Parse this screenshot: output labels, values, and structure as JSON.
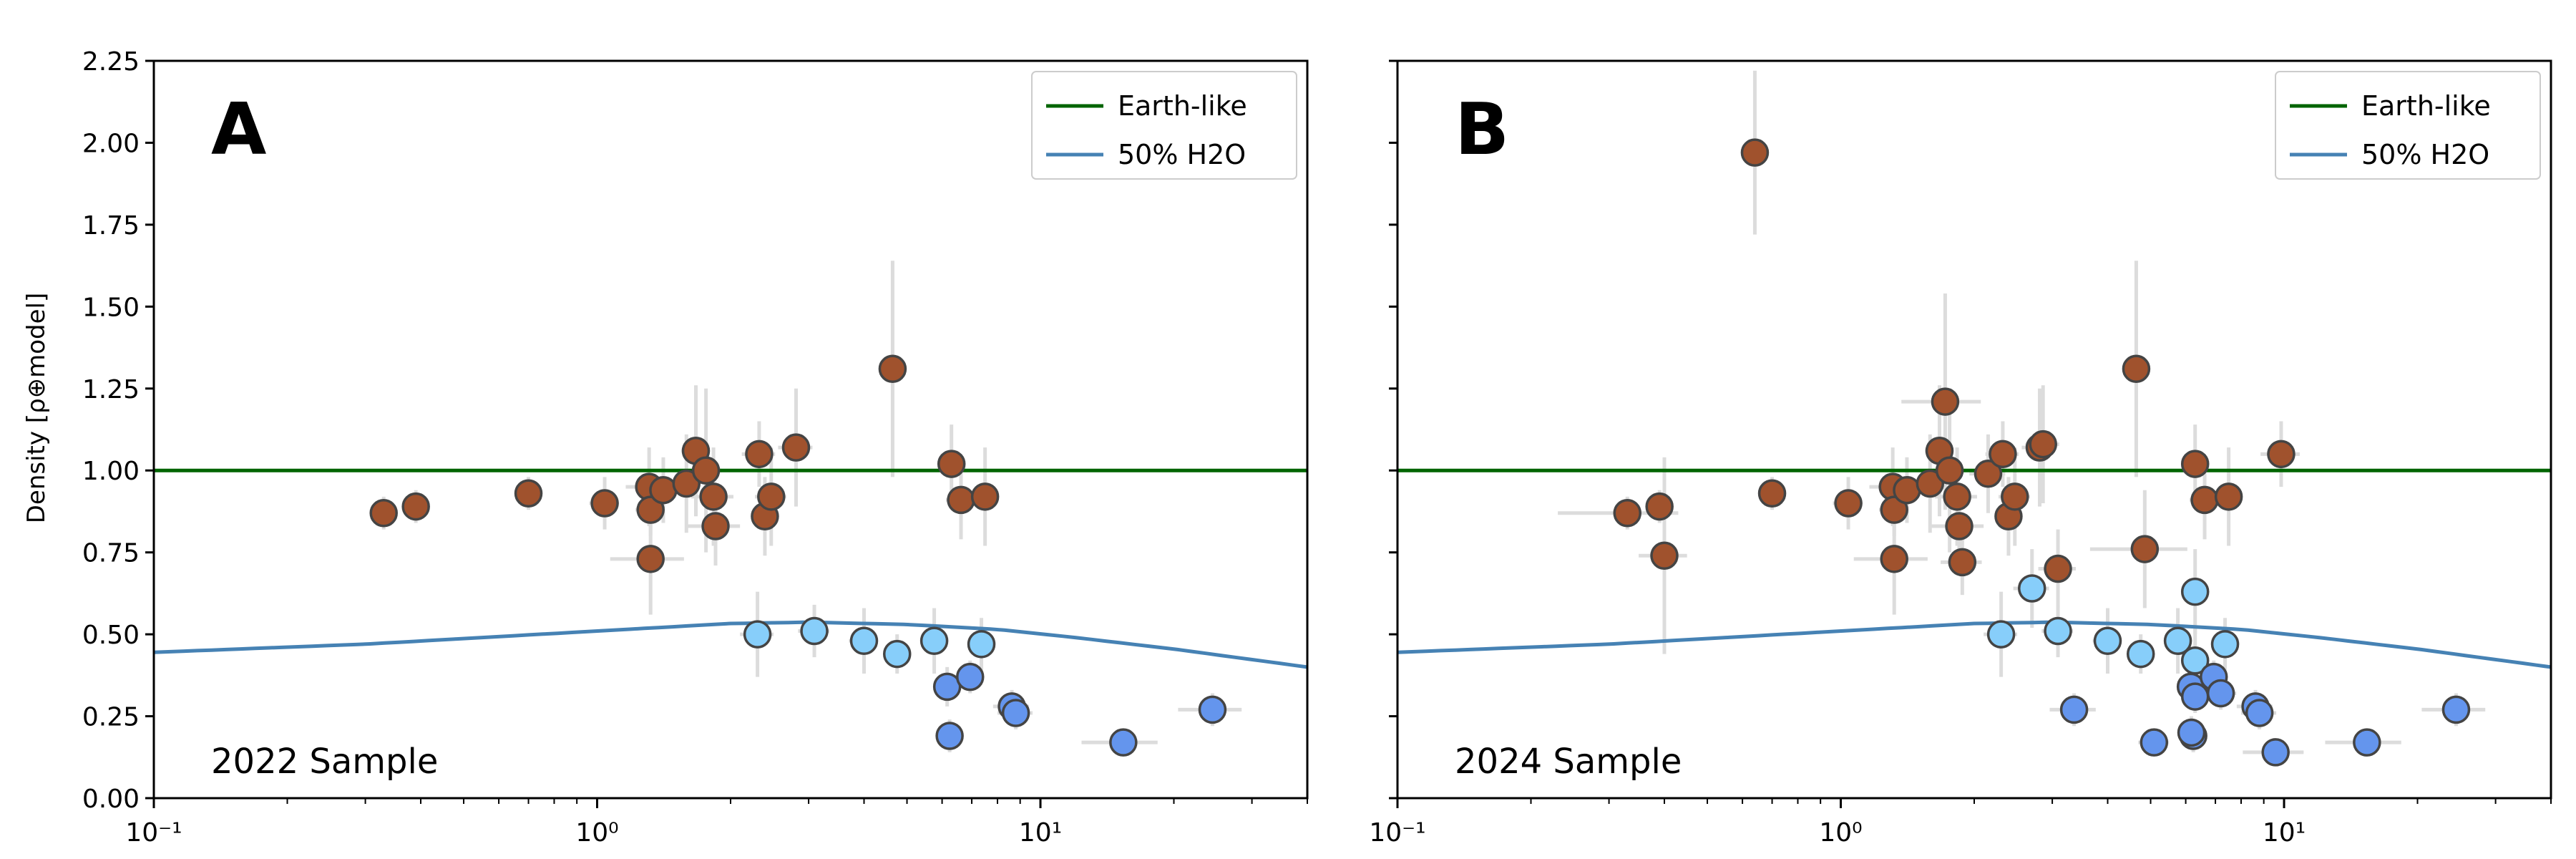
{
  "y_axis_label": "Density [ρ⊕model]",
  "x_tick_labels": [
    "10⁻¹",
    "10⁰",
    "10¹"
  ],
  "y_tick_labels": [
    "0.00",
    "0.25",
    "0.50",
    "0.75",
    "1.00",
    "1.25",
    "1.50",
    "1.75",
    "2.00",
    "2.25"
  ],
  "colors": {
    "earth_line": "#006400",
    "water_line": "#4682b4",
    "rocky": "#a0522d",
    "water_rich": "#87cefa",
    "gas_rich": "#6495ed",
    "marker_edge": "#444444",
    "errorbar": "#dcdcdc"
  },
  "chart_data": [
    {
      "type": "scatter",
      "panel": "A",
      "annotation": "2022 Sample",
      "xscale": "log",
      "xlim": [
        0.1,
        40
      ],
      "ylim": [
        0,
        2.25
      ],
      "ylabel": "Density [ρ⊕model]",
      "grid": false,
      "legend": {
        "position": "top-right",
        "entries": [
          "Earth-like",
          "50% H2O"
        ]
      },
      "lines": [
        {
          "name": "Earth-like",
          "x": [
            0.1,
            40
          ],
          "y": [
            1.0,
            1.0
          ]
        },
        {
          "name": "50% H2O",
          "x": [
            0.1,
            0.3,
            1,
            2,
            3,
            5,
            8,
            12,
            20,
            40
          ],
          "y": [
            0.445,
            0.47,
            0.51,
            0.533,
            0.537,
            0.53,
            0.515,
            0.49,
            0.455,
            0.4
          ]
        }
      ],
      "groups": [
        {
          "category": "rocky",
          "x": [
            0.33,
            0.39,
            0.7,
            1.04,
            1.31,
            1.32,
            1.41,
            1.59,
            1.67,
            1.76,
            1.83,
            1.85,
            2.32,
            2.39,
            2.47,
            2.81,
            4.64,
            6.3,
            6.62,
            7.5,
            1.32
          ],
          "y": [
            0.87,
            0.89,
            0.93,
            0.9,
            0.95,
            0.88,
            0.94,
            0.96,
            1.06,
            1.0,
            0.92,
            0.83,
            1.05,
            0.86,
            0.92,
            1.07,
            1.31,
            1.02,
            0.91,
            0.92,
            0.73
          ],
          "xerr": [
            0.02,
            0.02,
            0.04,
            0.08,
            0.15,
            0.1,
            0.12,
            0.12,
            0.12,
            0.15,
            0.2,
            0.25,
            0.2,
            0.15,
            0.2,
            0.25,
            0.3,
            0.4,
            0.5,
            0.5,
            0.25
          ],
          "yerr": [
            0.05,
            0.05,
            0.05,
            0.08,
            0.12,
            0.08,
            0.1,
            0.15,
            0.2,
            0.25,
            0.15,
            0.12,
            0.1,
            0.12,
            0.15,
            0.18,
            0.33,
            0.12,
            0.12,
            0.15,
            0.17
          ]
        },
        {
          "category": "water-rich",
          "x": [
            2.3,
            3.09,
            4.0,
            4.75,
            5.76,
            7.36
          ],
          "y": [
            0.5,
            0.51,
            0.48,
            0.44,
            0.48,
            0.47
          ],
          "xerr": [
            0.2,
            0.25,
            0.3,
            0.3,
            0.4,
            0.4
          ],
          "yerr": [
            0.13,
            0.08,
            0.1,
            0.06,
            0.1,
            0.08
          ]
        },
        {
          "category": "gas-rich",
          "x": [
            6.16,
            6.24,
            6.94,
            8.62,
            8.8,
            15.38,
            24.44
          ],
          "y": [
            0.34,
            0.19,
            0.37,
            0.28,
            0.26,
            0.17,
            0.27
          ],
          "xerr": [
            0.4,
            0.4,
            0.4,
            0.8,
            0.8,
            3.0,
            4.0
          ],
          "yerr": [
            0.06,
            0.05,
            0.05,
            0.05,
            0.05,
            0.02,
            0.05
          ]
        }
      ]
    },
    {
      "type": "scatter",
      "panel": "B",
      "annotation": "2024 Sample",
      "xscale": "log",
      "xlim": [
        0.1,
        40
      ],
      "ylim": [
        0,
        2.25
      ],
      "grid": false,
      "legend": {
        "position": "top-right",
        "entries": [
          "Earth-like",
          "50% H2O"
        ]
      },
      "lines": [
        {
          "name": "Earth-like",
          "x": [
            0.1,
            40
          ],
          "y": [
            1.0,
            1.0
          ]
        },
        {
          "name": "50% H2O",
          "x": [
            0.1,
            0.3,
            1,
            2,
            3,
            5,
            8,
            12,
            20,
            40
          ],
          "y": [
            0.445,
            0.47,
            0.51,
            0.533,
            0.537,
            0.53,
            0.515,
            0.49,
            0.455,
            0.4
          ]
        }
      ],
      "groups": [
        {
          "category": "rocky",
          "x": [
            0.33,
            0.39,
            0.4,
            0.64,
            0.7,
            1.04,
            1.31,
            1.32,
            1.32,
            1.41,
            1.59,
            1.67,
            1.72,
            1.76,
            1.83,
            1.85,
            1.88,
            2.15,
            2.32,
            2.39,
            2.47,
            2.81,
            2.86,
            3.09,
            4.64,
            4.85,
            6.3,
            6.62,
            7.5,
            9.85
          ],
          "y": [
            0.87,
            0.89,
            0.74,
            1.97,
            0.93,
            0.9,
            0.95,
            0.88,
            0.73,
            0.94,
            0.96,
            1.06,
            1.21,
            1.0,
            0.92,
            0.83,
            0.72,
            0.99,
            1.05,
            0.86,
            0.92,
            1.07,
            1.08,
            0.7,
            1.31,
            0.76,
            1.02,
            0.91,
            0.92,
            1.05
          ],
          "xerr": [
            0.1,
            0.02,
            0.05,
            0.03,
            0.04,
            0.08,
            0.15,
            0.1,
            0.25,
            0.12,
            0.12,
            0.12,
            0.35,
            0.15,
            0.2,
            0.25,
            0.2,
            0.2,
            0.2,
            0.15,
            0.2,
            0.25,
            0.25,
            0.3,
            0.3,
            1.2,
            0.4,
            0.5,
            0.5,
            1.0
          ],
          "yerr": [
            0.05,
            0.05,
            0.3,
            0.25,
            0.05,
            0.08,
            0.12,
            0.08,
            0.17,
            0.1,
            0.15,
            0.2,
            0.33,
            0.25,
            0.15,
            0.12,
            0.1,
            0.12,
            0.1,
            0.12,
            0.15,
            0.18,
            0.18,
            0.12,
            0.33,
            0.18,
            0.12,
            0.12,
            0.15,
            0.1
          ]
        },
        {
          "category": "water-rich",
          "x": [
            2.3,
            2.7,
            3.09,
            4.0,
            4.75,
            5.76,
            6.3,
            6.3,
            7.36
          ],
          "y": [
            0.5,
            0.64,
            0.51,
            0.48,
            0.44,
            0.48,
            0.63,
            0.42,
            0.47
          ],
          "xerr": [
            0.2,
            0.25,
            0.25,
            0.3,
            0.3,
            0.4,
            0.4,
            0.4,
            0.4
          ],
          "yerr": [
            0.13,
            0.12,
            0.08,
            0.1,
            0.06,
            0.1,
            0.13,
            0.1,
            0.08
          ]
        },
        {
          "category": "gas-rich",
          "x": [
            3.36,
            5.09,
            6.16,
            6.24,
            6.18,
            6.3,
            6.94,
            7.2,
            8.62,
            8.8,
            9.57,
            15.38,
            24.44
          ],
          "y": [
            0.27,
            0.17,
            0.34,
            0.19,
            0.2,
            0.31,
            0.37,
            0.32,
            0.28,
            0.26,
            0.14,
            0.17,
            0.27
          ],
          "xerr": [
            0.4,
            0.4,
            0.4,
            0.4,
            0.4,
            0.4,
            0.4,
            0.6,
            0.8,
            0.8,
            1.5,
            3.0,
            4.0
          ],
          "yerr": [
            0.05,
            0.03,
            0.06,
            0.05,
            0.05,
            0.05,
            0.05,
            0.05,
            0.05,
            0.05,
            0.03,
            0.02,
            0.05
          ]
        }
      ]
    }
  ]
}
